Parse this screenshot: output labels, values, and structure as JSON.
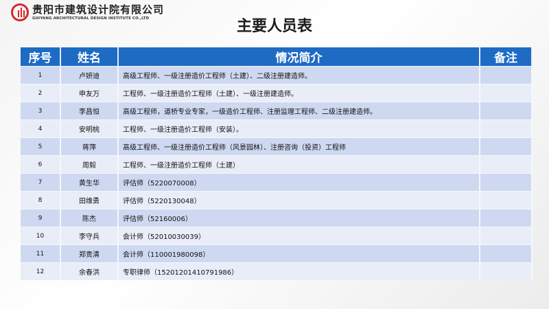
{
  "logo": {
    "cn": "贵阳市建筑设计院有限公司",
    "en": "GUIYANG ARCHITECTURAL DESIGN INSTITUTE CO.,LTD",
    "color": "#d7262b"
  },
  "title": "主要人员表",
  "table": {
    "headers": [
      "序号",
      "姓名",
      "情况简介",
      "备注"
    ],
    "header_color": "#1e6bc4",
    "rows": [
      {
        "no": "1",
        "name": "卢妍迪",
        "desc": "高级工程师、一级注册造价工程师（土建）、二级注册建造师。",
        "note": ""
      },
      {
        "no": "2",
        "name": "申友万",
        "desc": "工程师、一级注册造价工程师（土建）、一级注册建造师。",
        "note": ""
      },
      {
        "no": "3",
        "name": "李昌恒",
        "desc": "高级工程师，道桥专业专家，一级造价工程师、注册监理工程师、二级注册建造师。",
        "note": ""
      },
      {
        "no": "4",
        "name": "安明桃",
        "desc": "工程师、一级注册造价工程师（安装）。",
        "note": ""
      },
      {
        "no": "5",
        "name": "蒋萍",
        "desc": "高级工程师、一级注册造价工程师（风景园林）、注册咨询（投资）工程师",
        "note": ""
      },
      {
        "no": "6",
        "name": "周毅",
        "desc": "工程师、一级注册造价工程师（土建）",
        "note": ""
      },
      {
        "no": "7",
        "name": "黄生华",
        "desc": "评估师（5220070008）",
        "note": ""
      },
      {
        "no": "8",
        "name": "田维勇",
        "desc": "评估师（5220130048）",
        "note": ""
      },
      {
        "no": "9",
        "name": "陈杰",
        "desc": "评估师（52160006）",
        "note": ""
      },
      {
        "no": "10",
        "name": "李守兵",
        "desc": "会计师（52010030039）",
        "note": ""
      },
      {
        "no": "11",
        "name": "郑贵清",
        "desc": "会计师（110001980098）",
        "note": ""
      },
      {
        "no": "12",
        "name": "余春洪",
        "desc": "专职律师（15201201410791986）",
        "note": ""
      }
    ]
  }
}
